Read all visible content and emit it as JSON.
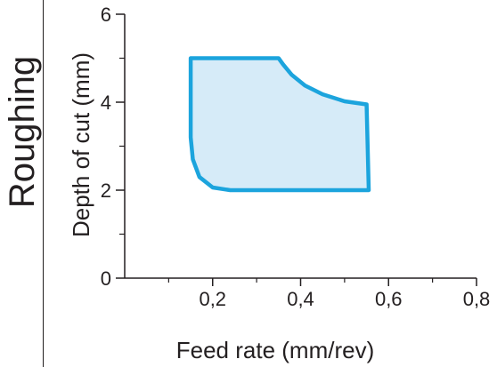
{
  "side_label": "Roughing",
  "colors": {
    "fill": "#d6ebf8",
    "stroke": "#1ca4dd",
    "axis": "#231f20"
  },
  "chart_data": {
    "type": "area",
    "xlabel": "Feed rate (mm/rev)",
    "ylabel": "Depth of cut (mm)",
    "xlim": [
      0,
      0.8
    ],
    "ylim": [
      0,
      6
    ],
    "x_major_ticks": [
      {
        "value": 0.2,
        "label": "0,2"
      },
      {
        "value": 0.4,
        "label": "0,4"
      },
      {
        "value": 0.6,
        "label": "0,6"
      },
      {
        "value": 0.8,
        "label": "0,8"
      }
    ],
    "x_minor_ticks": [
      0.1,
      0.3,
      0.5,
      0.7
    ],
    "y_major_ticks": [
      {
        "value": 0,
        "label": "0"
      },
      {
        "value": 2,
        "label": "2"
      },
      {
        "value": 4,
        "label": "4"
      },
      {
        "value": 6,
        "label": "6"
      }
    ],
    "y_minor_ticks": [
      1,
      3,
      5
    ],
    "grid": false,
    "region_outline": [
      {
        "x": 0.15,
        "y": 5.0
      },
      {
        "x": 0.35,
        "y": 5.0
      },
      {
        "x": 0.36,
        "y": 4.86
      },
      {
        "x": 0.38,
        "y": 4.62
      },
      {
        "x": 0.41,
        "y": 4.38
      },
      {
        "x": 0.45,
        "y": 4.18
      },
      {
        "x": 0.5,
        "y": 4.02
      },
      {
        "x": 0.55,
        "y": 3.95
      },
      {
        "x": 0.555,
        "y": 2.0
      },
      {
        "x": 0.24,
        "y": 2.0
      },
      {
        "x": 0.2,
        "y": 2.06
      },
      {
        "x": 0.17,
        "y": 2.3
      },
      {
        "x": 0.155,
        "y": 2.7
      },
      {
        "x": 0.15,
        "y": 3.2
      }
    ]
  }
}
